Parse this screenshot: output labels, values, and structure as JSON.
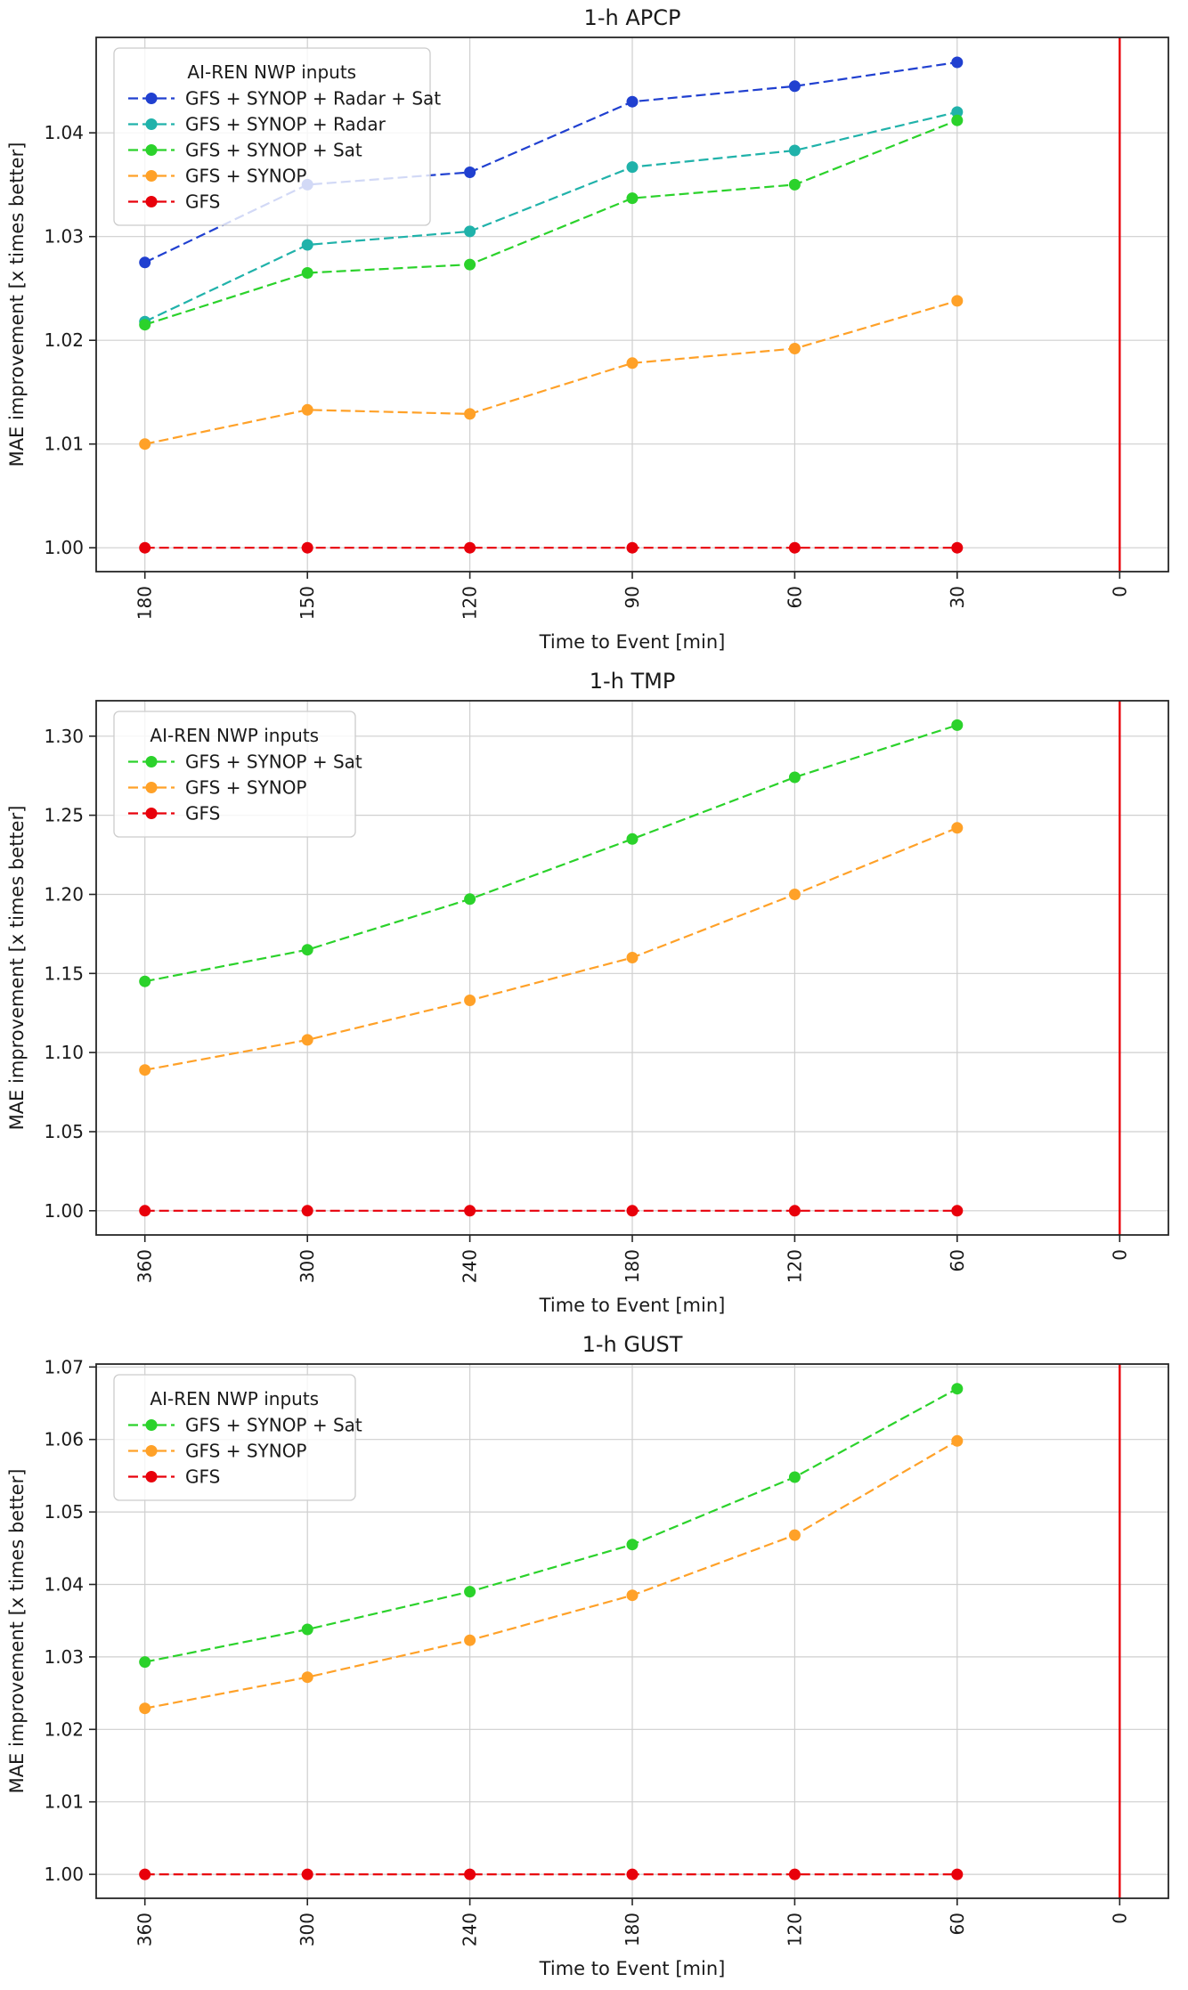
{
  "figure": {
    "background": "#ffffff",
    "text_color": "#1a1a1a",
    "grid_color": "#cfcfcf",
    "spine_color": "#262626",
    "legend_border_color": "#cccccc"
  },
  "chart_data": [
    {
      "type": "line",
      "title": "1-h APCP",
      "xlabel": "Time to Event [min]",
      "ylabel": "MAE improvement [x times better]",
      "legend_title": "AI-REN NWP inputs",
      "legend_position": "upper left",
      "grid": true,
      "xlim": [
        189,
        -9
      ],
      "ylim": [
        0.9977,
        1.0492
      ],
      "x": [
        180,
        150,
        120,
        90,
        60,
        30
      ],
      "x_ticks": {
        "values": [
          180,
          150,
          120,
          90,
          60,
          30,
          0
        ],
        "labels": [
          "180",
          "150",
          "120",
          "90",
          "60",
          "30",
          "0"
        ]
      },
      "y_ticks": {
        "values": [
          1.0,
          1.01,
          1.02,
          1.03,
          1.04
        ],
        "labels": [
          "1.00",
          "1.01",
          "1.02",
          "1.03",
          "1.04"
        ]
      },
      "event_line": {
        "x": 0,
        "color": "#e8000b"
      },
      "series": [
        {
          "name": "GFS + SYNOP + Radar + Sat",
          "color": "#2040d0",
          "values": [
            1.0275,
            1.035,
            1.0362,
            1.043,
            1.0445,
            1.0468
          ]
        },
        {
          "name": "GFS + SYNOP + Radar",
          "color": "#20b2aa",
          "values": [
            1.0218,
            1.0292,
            1.0305,
            1.0367,
            1.0383,
            1.042
          ]
        },
        {
          "name": "GFS + SYNOP + Sat",
          "color": "#2bd22b",
          "values": [
            1.0215,
            1.0265,
            1.0273,
            1.0337,
            1.035,
            1.0412
          ]
        },
        {
          "name": "GFS + SYNOP",
          "color": "#ffa128",
          "values": [
            1.01,
            1.0133,
            1.0129,
            1.0178,
            1.0192,
            1.0238
          ]
        },
        {
          "name": "GFS",
          "color": "#e8000b",
          "values": [
            1.0,
            1.0,
            1.0,
            1.0,
            1.0,
            1.0
          ]
        }
      ]
    },
    {
      "type": "line",
      "title": "1-h TMP",
      "xlabel": "Time to Event [min]",
      "ylabel": "MAE improvement [x times better]",
      "legend_title": "AI-REN NWP inputs",
      "legend_position": "upper left",
      "grid": true,
      "xlim": [
        378,
        -18
      ],
      "ylim": [
        0.9847,
        1.3224
      ],
      "x": [
        360,
        300,
        240,
        180,
        120,
        60
      ],
      "x_ticks": {
        "values": [
          360,
          300,
          240,
          180,
          120,
          60,
          0
        ],
        "labels": [
          "360",
          "300",
          "240",
          "180",
          "120",
          "60",
          "0"
        ]
      },
      "y_ticks": {
        "values": [
          1.0,
          1.05,
          1.1,
          1.15,
          1.2,
          1.25,
          1.3
        ],
        "labels": [
          "1.00",
          "1.05",
          "1.10",
          "1.15",
          "1.20",
          "1.25",
          "1.30"
        ]
      },
      "event_line": {
        "x": 0,
        "color": "#e8000b"
      },
      "series": [
        {
          "name": "GFS + SYNOP + Sat",
          "color": "#2bd22b",
          "values": [
            1.145,
            1.165,
            1.197,
            1.235,
            1.274,
            1.307
          ]
        },
        {
          "name": "GFS + SYNOP",
          "color": "#ffa128",
          "values": [
            1.089,
            1.108,
            1.133,
            1.16,
            1.2,
            1.242
          ]
        },
        {
          "name": "GFS",
          "color": "#e8000b",
          "values": [
            1.0,
            1.0,
            1.0,
            1.0,
            1.0,
            1.0
          ]
        }
      ]
    },
    {
      "type": "line",
      "title": "1-h GUST",
      "xlabel": "Time to Event [min]",
      "ylabel": "MAE improvement [x times better]",
      "legend_title": "AI-REN NWP inputs",
      "legend_position": "upper left",
      "grid": true,
      "xlim": [
        378,
        -18
      ],
      "ylim": [
        0.9967,
        1.0704
      ],
      "x": [
        360,
        300,
        240,
        180,
        120,
        60
      ],
      "x_ticks": {
        "values": [
          360,
          300,
          240,
          180,
          120,
          60,
          0
        ],
        "labels": [
          "360",
          "300",
          "240",
          "180",
          "120",
          "60",
          "0"
        ]
      },
      "y_ticks": {
        "values": [
          1.0,
          1.01,
          1.02,
          1.03,
          1.04,
          1.05,
          1.06,
          1.07
        ],
        "labels": [
          "1.00",
          "1.01",
          "1.02",
          "1.03",
          "1.04",
          "1.05",
          "1.06",
          "1.07"
        ]
      },
      "event_line": {
        "x": 0,
        "color": "#e8000b"
      },
      "series": [
        {
          "name": "GFS + SYNOP + Sat",
          "color": "#2bd22b",
          "values": [
            1.0293,
            1.0338,
            1.039,
            1.0455,
            1.0548,
            1.067
          ]
        },
        {
          "name": "GFS + SYNOP",
          "color": "#ffa128",
          "values": [
            1.0229,
            1.0272,
            1.0323,
            1.0385,
            1.0468,
            1.0598
          ]
        },
        {
          "name": "GFS",
          "color": "#e8000b",
          "values": [
            1.0,
            1.0,
            1.0,
            1.0,
            1.0,
            1.0
          ]
        }
      ]
    }
  ]
}
